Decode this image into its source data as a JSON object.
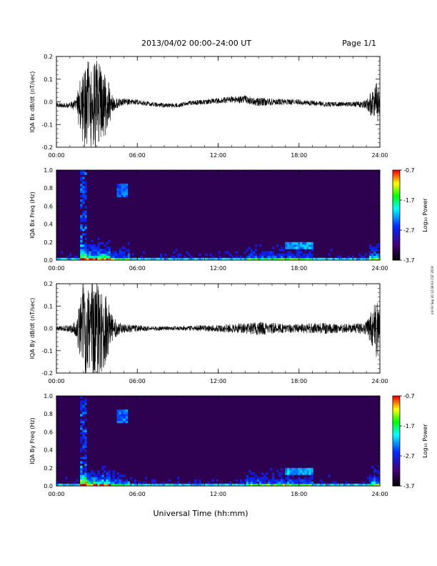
{
  "header": {
    "title": "2013/04/02  00:00–24:00 UT",
    "page": "Page 1/1"
  },
  "footer": {
    "xlabel": "Universal Time (hh:mm)"
  },
  "side_note": "mtl Fri Sep 20 12:08:03 CST 2019",
  "colorbar": {
    "label": "Log₁₀ Power",
    "ticks": [
      "-0.7",
      "-1.7",
      "-2.7",
      "-3.7"
    ],
    "range": [
      -3.7,
      -0.7
    ]
  },
  "chart_data": [
    {
      "type": "line",
      "ylabel": "IQA Bx dB/dt (nT/sec)",
      "ylim": [
        -0.2,
        0.2
      ],
      "yticks": [
        "0.2",
        "0.1",
        "0.0",
        "-0.1",
        "-0.2"
      ],
      "xticks": [
        "00:00",
        "06:00",
        "12:00",
        "18:00",
        "24:00"
      ],
      "xlim_hours": [
        0,
        24
      ],
      "series": [
        {
          "x_hours": [
            0,
            0.5,
            1,
            1.5,
            1.8,
            2.2,
            2.6,
            3.0,
            3.4,
            3.8,
            4.2,
            4.6,
            5,
            6,
            7,
            8,
            9,
            10,
            11,
            12,
            13,
            14,
            15,
            16,
            17,
            18,
            19,
            20,
            21,
            22,
            23,
            23.4,
            23.8,
            24
          ],
          "amplitude": [
            0.01,
            0.012,
            0.012,
            0.03,
            0.15,
            0.2,
            0.2,
            0.2,
            0.18,
            0.12,
            0.03,
            0.02,
            0.015,
            0.012,
            0.01,
            0.01,
            0.01,
            0.01,
            0.012,
            0.012,
            0.015,
            0.018,
            0.02,
            0.015,
            0.012,
            0.012,
            0.012,
            0.012,
            0.01,
            0.01,
            0.02,
            0.06,
            0.1,
            0.04
          ],
          "offset": [
            -0.015,
            -0.015,
            -0.015,
            -0.015,
            -0.015,
            -0.015,
            -0.015,
            -0.015,
            -0.015,
            -0.015,
            -0.01,
            -0.005,
            0.0,
            0.0,
            -0.01,
            -0.015,
            -0.015,
            -0.005,
            0.0,
            0.005,
            0.01,
            0.01,
            0.0,
            0.0,
            0.0,
            0.0,
            -0.005,
            -0.01,
            -0.01,
            -0.01,
            -0.01,
            -0.01,
            -0.01,
            -0.01
          ]
        }
      ]
    },
    {
      "type": "heatmap",
      "ylabel": "IQA Bx Freq (Hz)",
      "ylim": [
        0.0,
        1.0
      ],
      "yticks": [
        "1.0",
        "0.8",
        "0.6",
        "0.4",
        "0.2",
        "0.0"
      ],
      "xticks": [
        "00:00",
        "06:00",
        "12:00",
        "18:00",
        "24:00"
      ],
      "xlim_hours": [
        0,
        24
      ],
      "zlim": [
        -3.7,
        -0.7
      ]
    },
    {
      "type": "line",
      "ylabel": "IQA By dB/dt (nT/sec)",
      "ylim": [
        -0.2,
        0.2
      ],
      "yticks": [
        "0.2",
        "0.1",
        "0.0",
        "-0.1",
        "-0.2"
      ],
      "xticks": [
        "00:00",
        "06:00",
        "12:00",
        "18:00",
        "24:00"
      ],
      "xlim_hours": [
        0,
        24
      ],
      "series": [
        {
          "x_hours": [
            0,
            0.5,
            1,
            1.5,
            1.8,
            2.2,
            2.6,
            3.0,
            3.4,
            3.8,
            4.2,
            4.6,
            5,
            6,
            7,
            8,
            9,
            10,
            11,
            12,
            13,
            14,
            15,
            16,
            17,
            18,
            19,
            20,
            21,
            22,
            23,
            23.4,
            23.8,
            24
          ],
          "amplitude": [
            0.01,
            0.012,
            0.015,
            0.04,
            0.18,
            0.22,
            0.22,
            0.22,
            0.2,
            0.14,
            0.05,
            0.03,
            0.02,
            0.015,
            0.01,
            0.01,
            0.01,
            0.012,
            0.015,
            0.015,
            0.02,
            0.025,
            0.03,
            0.025,
            0.02,
            0.02,
            0.025,
            0.025,
            0.02,
            0.02,
            0.03,
            0.08,
            0.14,
            0.05
          ],
          "offset": [
            0.0,
            0.0,
            0.0,
            0.0,
            0.0,
            0.0,
            0.0,
            0.0,
            0.0,
            0.0,
            0.0,
            0.0,
            0.0,
            0.0,
            0.0,
            0.0,
            0.0,
            0.0,
            0.0,
            0.0,
            0.0,
            0.0,
            0.0,
            0.0,
            0.0,
            0.0,
            0.0,
            0.0,
            0.0,
            0.0,
            0.0,
            0.0,
            0.0,
            0.0
          ]
        }
      ]
    },
    {
      "type": "heatmap",
      "ylabel": "IQA By Freq (Hz)",
      "ylim": [
        0.0,
        1.0
      ],
      "yticks": [
        "1.0",
        "0.8",
        "0.6",
        "0.4",
        "0.2",
        "0.0"
      ],
      "xticks": [
        "00:00",
        "06:00",
        "12:00",
        "18:00",
        "24:00"
      ],
      "xlim_hours": [
        0,
        24
      ],
      "zlim": [
        -3.7,
        -0.7
      ]
    }
  ]
}
